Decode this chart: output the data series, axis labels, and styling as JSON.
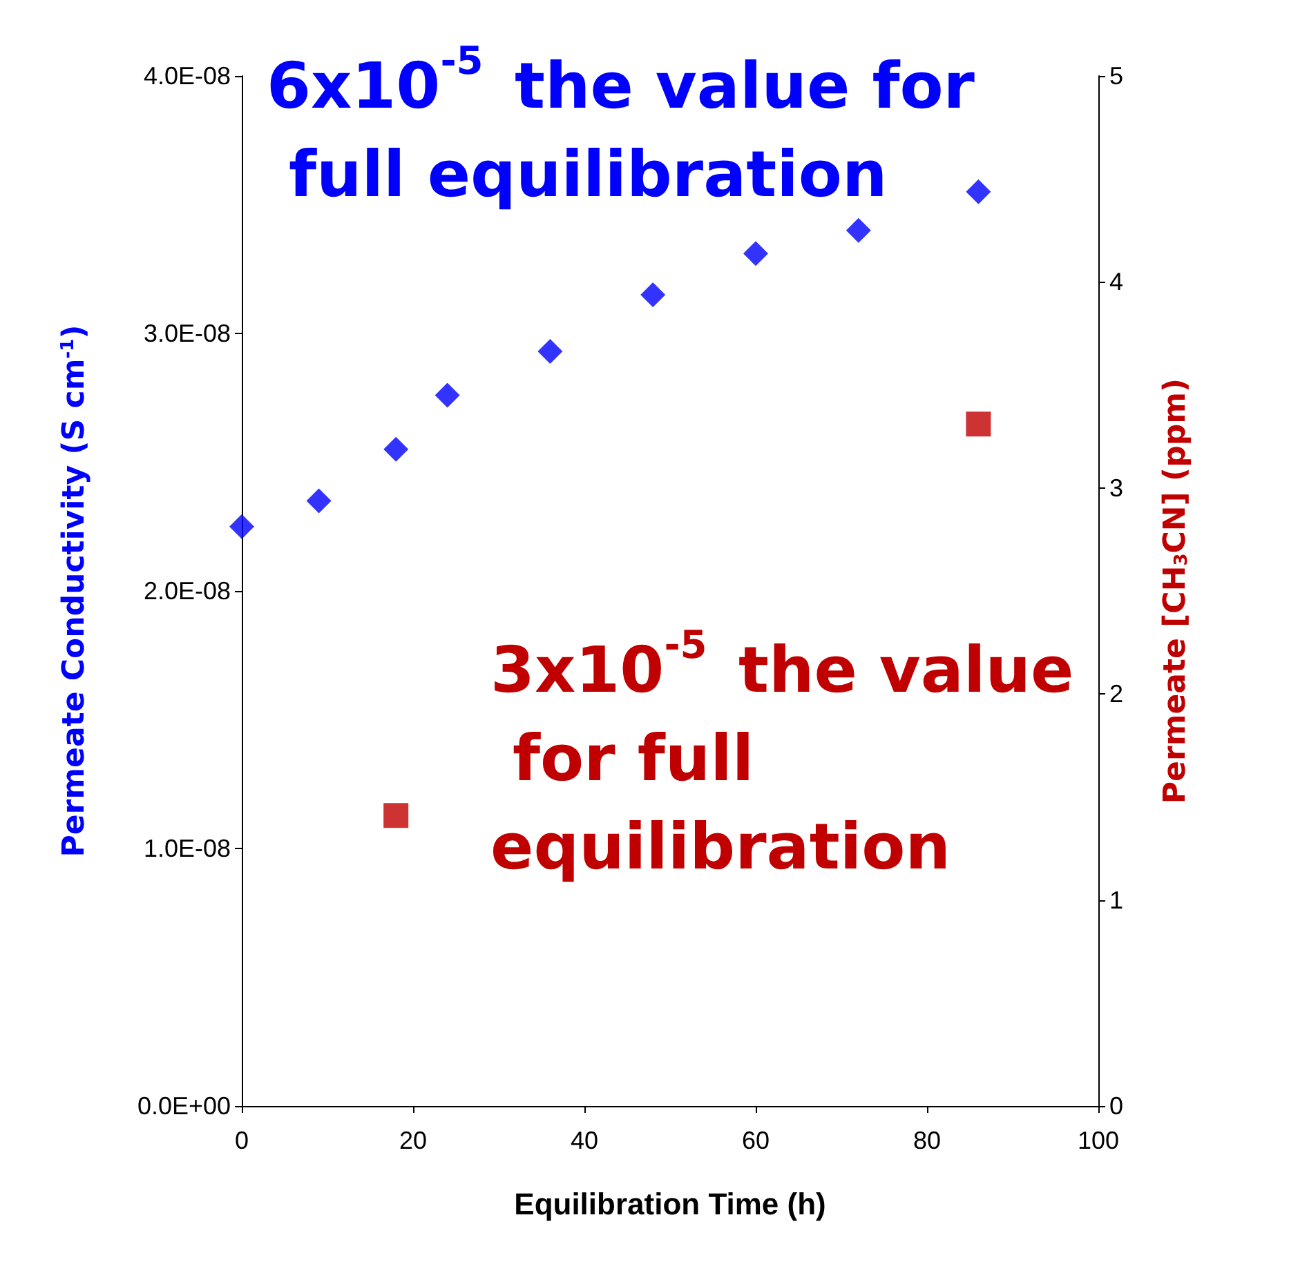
{
  "chart_data": {
    "type": "scatter",
    "xlabel": "Equilibration Time (h)",
    "ylabel": "Permeate Conductivity (S cm$^{-1}$)",
    "y2label": "Permeate [CH$_{3}$CN] (ppm)",
    "xlim": [
      0,
      100
    ],
    "xticks": [
      0,
      20,
      40,
      60,
      80,
      100
    ],
    "ylim": [
      0,
      4e-08
    ],
    "yticks": [
      {
        "value": 0,
        "label": "0.0E+00"
      },
      {
        "value": 1e-08,
        "label": "1.0E-08"
      },
      {
        "value": 2e-08,
        "label": "2.0E-08"
      },
      {
        "value": 3e-08,
        "label": "3.0E-08"
      },
      {
        "value": 4e-08,
        "label": "4.0E-08"
      }
    ],
    "y2lim": [
      0,
      5
    ],
    "y2ticks": [
      0,
      1,
      2,
      3,
      4,
      5
    ],
    "series": [
      {
        "color": "#0000ff",
        "marker": "diamond",
        "x": [
          0,
          9,
          18,
          24,
          36,
          48,
          60,
          72,
          86
        ],
        "values": [
          2.25e-08,
          2.35e-08,
          2.55e-08,
          2.76e-08,
          2.93e-08,
          3.15e-08,
          3.31e-08,
          3.4e-08,
          3.55e-08
        ]
      },
      {
        "color": "#c00000",
        "marker": "square",
        "axis": "y2",
        "x": [
          18,
          86
        ],
        "values": [
          1.41,
          3.31
        ]
      }
    ],
    "annotations": [
      "6x10$^{-5}$ the value for full equilibration",
      "3x10$^{-5}$ the value for full equilibration"
    ],
    "grid": false
  }
}
